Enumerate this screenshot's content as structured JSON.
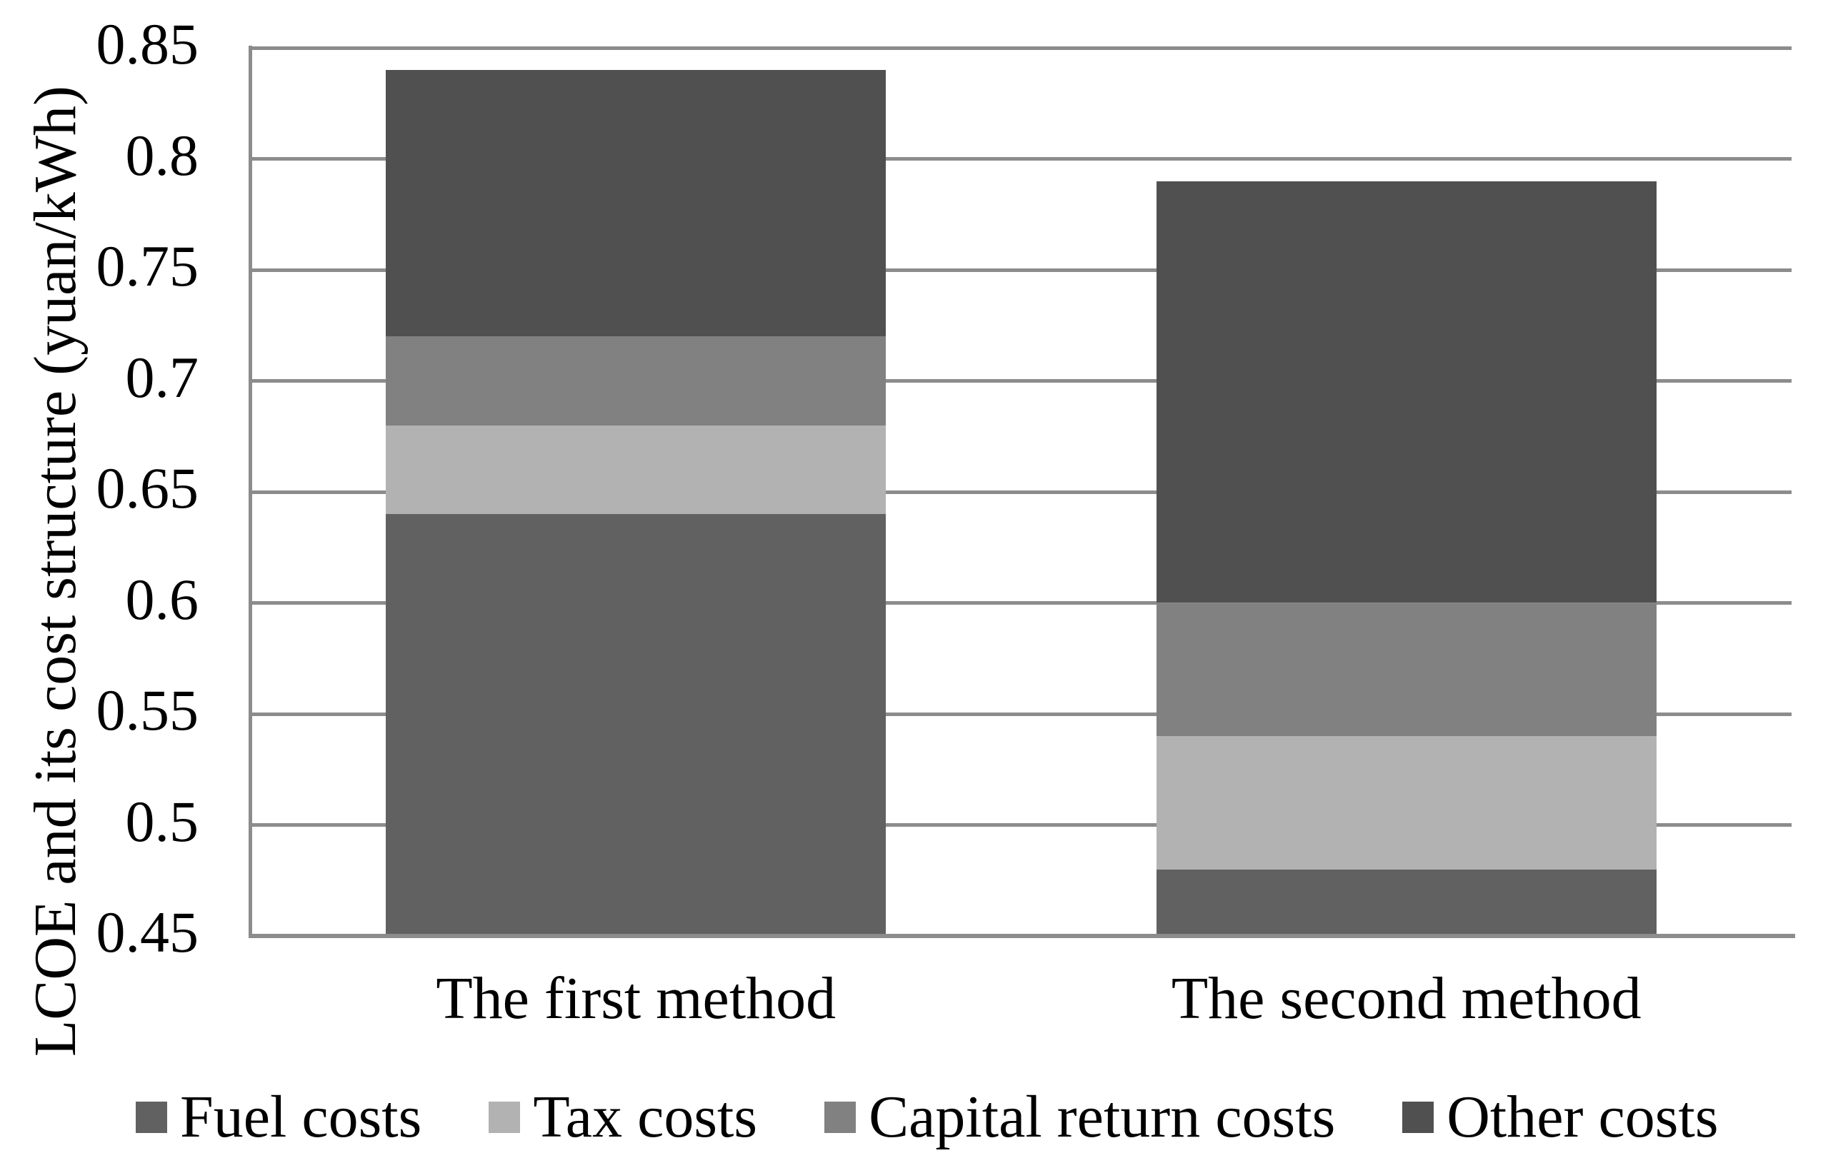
{
  "colors": {
    "fuel": "#616161",
    "tax": "#B2B2B2",
    "capital_return": "#818181",
    "other": "#505050",
    "gridline": "#8C8C8C",
    "text": "#000000",
    "background": "#FFFFFF"
  },
  "chart_data": {
    "type": "bar",
    "subtype": "stacked-vertical",
    "categories": [
      "The first method",
      "The second method"
    ],
    "series": [
      {
        "name": "Fuel costs",
        "color": "#616161",
        "values": [
          0.64,
          0.48
        ]
      },
      {
        "name": "Tax costs",
        "color": "#B2B2B2",
        "values": [
          0.04,
          0.06
        ]
      },
      {
        "name": "Capital return costs",
        "color": "#818181",
        "values": [
          0.04,
          0.06
        ]
      },
      {
        "name": "Other costs",
        "color": "#505050",
        "values": [
          0.12,
          0.19
        ]
      }
    ],
    "totals": [
      0.84,
      0.79
    ],
    "title": "",
    "xlabel": "",
    "ylabel": "LCOE and its cost structure (yuan/kWh)",
    "ylim": [
      0.45,
      0.85
    ],
    "ytick_step": 0.05,
    "ytick_labels": [
      "0.45",
      "0.5",
      "0.55",
      "0.6",
      "0.65",
      "0.7",
      "0.75",
      "0.8",
      "0.85"
    ],
    "grid": true,
    "gridline_color": "#8C8C8C",
    "legend_position": "bottom",
    "legend_labels": [
      "Fuel costs",
      "Tax costs",
      "Capital return costs",
      "Other costs"
    ]
  }
}
